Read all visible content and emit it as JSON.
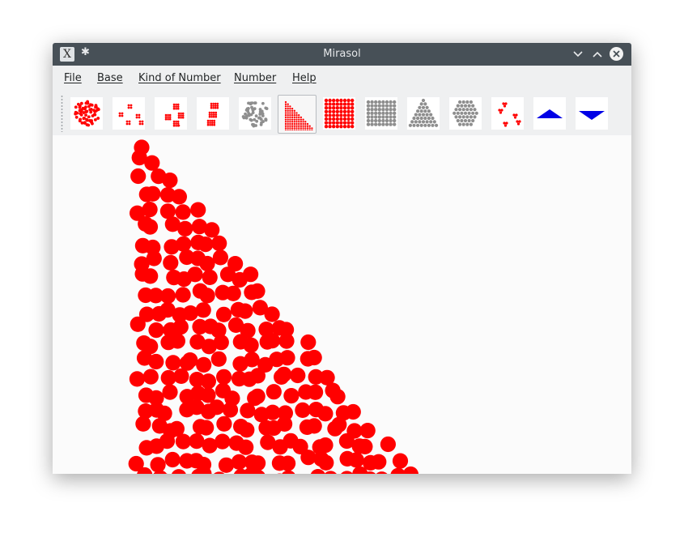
{
  "window": {
    "title": "Mirasol"
  },
  "menubar": {
    "items": [
      "File",
      "Base",
      "Kind of Number",
      "Number",
      "Help"
    ]
  },
  "toolbar": {
    "buttons": [
      {
        "name": "random-cluster-view-button",
        "icon": "red-dot-cluster-icon"
      },
      {
        "name": "scattered-groups-view-button",
        "icon": "red-scattered-groups-icon"
      },
      {
        "name": "cluster-groups-view-button",
        "icon": "red-cluster-groups-icon"
      },
      {
        "name": "stacked-groups-view-button",
        "icon": "red-stacked-groups-icon"
      },
      {
        "name": "gray-cluster-view-button",
        "icon": "gray-dot-cluster-icon"
      },
      {
        "name": "triangle-rows-view-button",
        "icon": "red-triangle-rows-icon",
        "active": true
      },
      {
        "name": "red-grid-view-button",
        "icon": "red-dot-grid-icon"
      },
      {
        "name": "gray-grid-view-button",
        "icon": "gray-dot-grid-icon"
      },
      {
        "name": "gray-triangle-view-button",
        "icon": "gray-triangle-icon"
      },
      {
        "name": "gray-hexagon-view-button",
        "icon": "gray-hexagon-icon"
      },
      {
        "name": "pairs-view-button",
        "icon": "red-pairs-icon"
      },
      {
        "name": "increase-number-button",
        "icon": "blue-up-triangle-icon"
      },
      {
        "name": "decrease-number-button",
        "icon": "blue-down-triangle-icon"
      }
    ]
  },
  "colors": {
    "dot": "#ff0000",
    "gray_dot": "#8e8e8e",
    "arrow": "#0000e6",
    "titlebar": "#475057"
  }
}
